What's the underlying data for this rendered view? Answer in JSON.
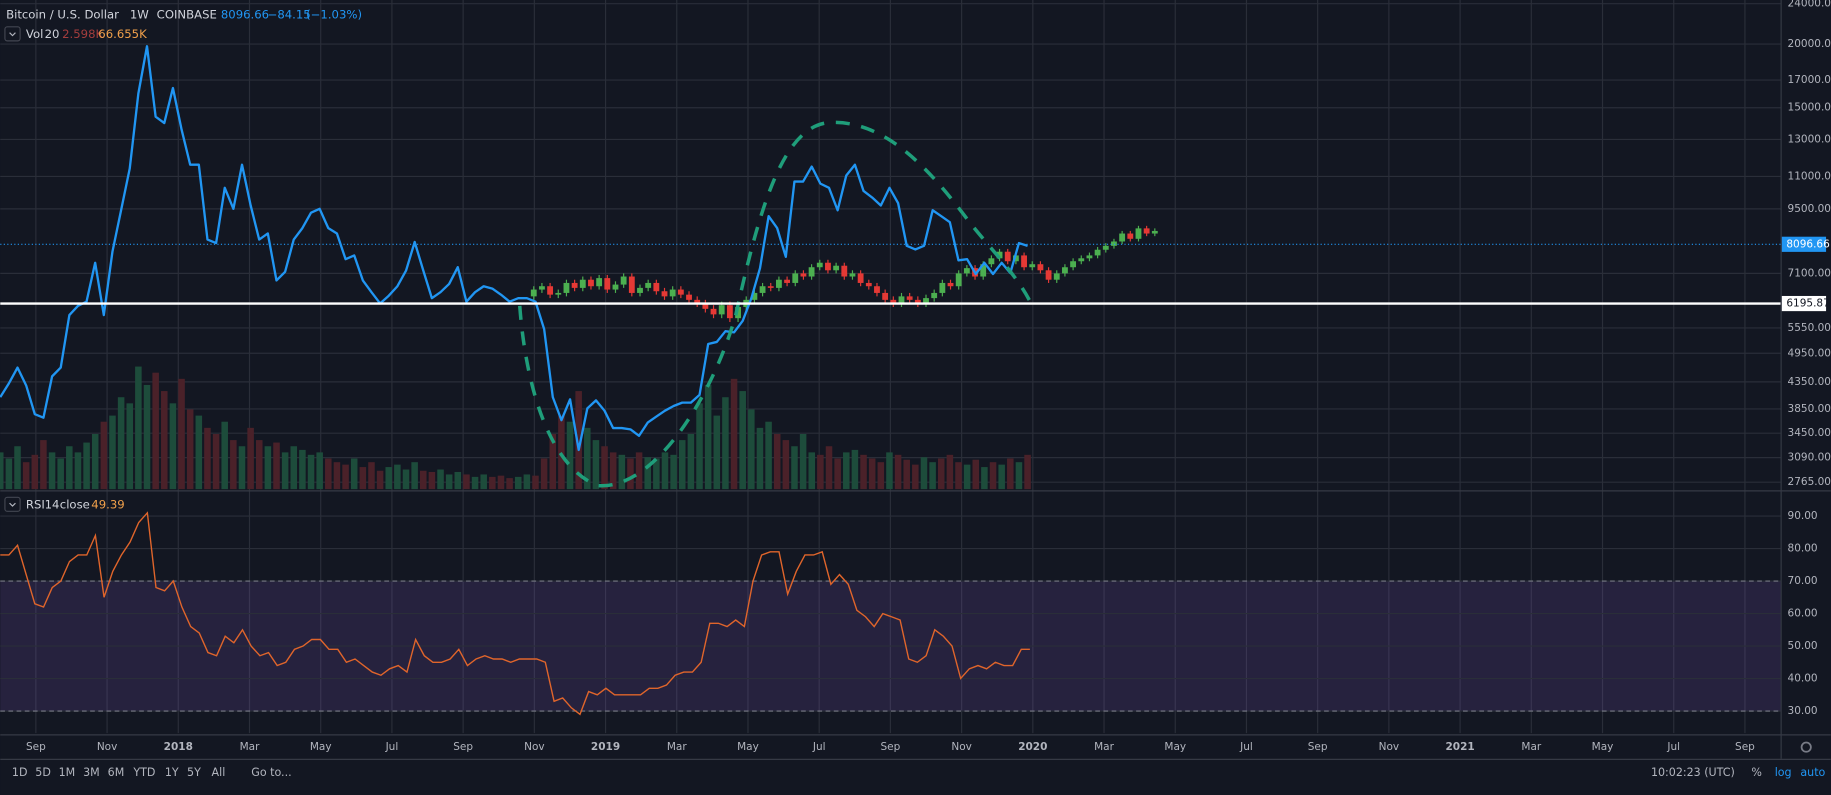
{
  "legend": {
    "symbol": "Bitcoin / U.S. Dollar",
    "interval": "1W",
    "exchange": "COINBASE",
    "last": "8096.66",
    "change": "−84.15",
    "change_pct": "(−1.03%)"
  },
  "chart_data": [
    {
      "type": "candlestick",
      "log": true,
      "grid": true,
      "ylim": [
        2680,
        24400
      ],
      "yticks": [
        {
          "value": 24000,
          "label": "24000.00"
        },
        {
          "value": 20000,
          "label": "20000.00"
        },
        {
          "value": 17000,
          "label": "17000.00"
        },
        {
          "value": 15000,
          "label": "15000.00"
        },
        {
          "value": 13000,
          "label": "13000.00"
        },
        {
          "value": 11000,
          "label": "11000.00"
        },
        {
          "value": 9500,
          "label": "9500.00"
        },
        {
          "value": 7100,
          "label": "7100.00"
        },
        {
          "value": 5550,
          "label": "5550.00"
        },
        {
          "value": 4950,
          "label": "4950.00"
        },
        {
          "value": 4350,
          "label": "4350.00"
        },
        {
          "value": 3850,
          "label": "3850.00"
        },
        {
          "value": 3450,
          "label": "3450.00"
        },
        {
          "value": 3090,
          "label": "3090.00"
        },
        {
          "value": 2765,
          "label": "2765.00"
        }
      ],
      "xlim": [
        "2017-08",
        "2021-10"
      ],
      "xticks": [
        {
          "value": "2017-09",
          "label": "Sep"
        },
        {
          "value": "2017-11",
          "label": "Nov"
        },
        {
          "value": "2018-01",
          "label": "2018"
        },
        {
          "value": "2018-03",
          "label": "Mar"
        },
        {
          "value": "2018-05",
          "label": "May"
        },
        {
          "value": "2018-07",
          "label": "Jul"
        },
        {
          "value": "2018-09",
          "label": "Sep"
        },
        {
          "value": "2018-11",
          "label": "Nov"
        },
        {
          "value": "2019-01",
          "label": "2019"
        },
        {
          "value": "2019-03",
          "label": "Mar"
        },
        {
          "value": "2019-05",
          "label": "May"
        },
        {
          "value": "2019-07",
          "label": "Jul"
        },
        {
          "value": "2019-09",
          "label": "Sep"
        },
        {
          "value": "2019-11",
          "label": "Nov"
        },
        {
          "value": "2020-01",
          "label": "2020"
        },
        {
          "value": "2020-03",
          "label": "Mar"
        },
        {
          "value": "2020-05",
          "label": "May"
        },
        {
          "value": "2020-07",
          "label": "Jul"
        },
        {
          "value": "2020-09",
          "label": "Sep"
        },
        {
          "value": "2020-11",
          "label": "Nov"
        },
        {
          "value": "2021-01",
          "label": "2021"
        },
        {
          "value": "2021-03",
          "label": "Mar"
        },
        {
          "value": "2021-05",
          "label": "May"
        },
        {
          "value": "2021-07",
          "label": "Jul"
        },
        {
          "value": "2021-09",
          "label": "Sep"
        }
      ],
      "series": [
        {
          "color": "#2196f3",
          "values": [
            4060,
            4320,
            4640,
            4280,
            3760,
            3700,
            4460,
            4640,
            5880,
            6130,
            6250,
            7450,
            5880,
            7830,
            9440,
            11400,
            16000,
            19800,
            14400,
            14000,
            16400,
            13600,
            11600,
            11600,
            8270,
            8140,
            10450,
            9500,
            11600,
            9650,
            8270,
            8500,
            6880,
            7150,
            8270,
            8710,
            9340,
            9500,
            8710,
            8500,
            7570,
            7700,
            6880,
            6520,
            6200,
            6420,
            6700,
            7190,
            8180,
            7190,
            6350,
            6520,
            6770,
            7300,
            6250,
            6520,
            6700,
            6630,
            6450,
            6250,
            6350,
            6350,
            6250,
            5520,
            4060,
            3660,
            4020,
            3200,
            3860,
            4000,
            3820,
            3530,
            3530,
            3510,
            3410,
            3620,
            3720,
            3820,
            3900,
            3960,
            3960,
            4100,
            5160,
            5210,
            5470,
            5440,
            5730,
            6350,
            7270,
            9190,
            8710,
            7650,
            10750,
            10750,
            11500,
            10650,
            10450,
            9440,
            11050,
            11600,
            10300,
            10000,
            9650,
            10450,
            9750,
            8040,
            7910,
            8040,
            9440,
            9190,
            8950,
            7530,
            7570,
            7080,
            7450,
            7080,
            7450,
            7110,
            8140,
            8040
          ]
        }
      ],
      "candles": {
        "up_color": "#4caf50",
        "down_color": "#e53935",
        "open": [
          6400,
          6600,
          6700,
          6450,
          6500,
          6800,
          6650,
          6900,
          6700,
          6950,
          6600,
          6750,
          7000,
          6500,
          6650,
          6800,
          6550,
          6400,
          6600,
          6450,
          6300,
          6200,
          6050,
          5900,
          6150,
          5800,
          6100,
          6300,
          6500,
          6700,
          6650,
          6900,
          6800,
          7100,
          7000,
          7300,
          7450,
          7200,
          7350,
          7000,
          7100,
          6800,
          6700,
          6500,
          6300,
          6200,
          6400,
          6300,
          6200,
          6350,
          6500,
          6800,
          6700,
          7100,
          7270,
          7000,
          7400,
          7600,
          7830,
          7500,
          7700,
          7300,
          7400,
          7200,
          6900,
          7100,
          7300,
          7500,
          7600,
          7700,
          7900,
          8040,
          8200,
          8500,
          8300,
          8700,
          8500
        ],
        "high": [
          6700,
          6800,
          6800,
          6600,
          6900,
          6900,
          7000,
          7000,
          7050,
          7050,
          6850,
          7100,
          7100,
          6750,
          6900,
          6900,
          6650,
          6700,
          6700,
          6550,
          6400,
          6300,
          6150,
          6250,
          6250,
          6200,
          6400,
          6600,
          6800,
          6800,
          7000,
          7000,
          7200,
          7200,
          7400,
          7550,
          7550,
          7450,
          7450,
          7200,
          7200,
          6900,
          6800,
          6600,
          6400,
          6500,
          6500,
          6400,
          6450,
          6600,
          6900,
          6900,
          7200,
          7370,
          7370,
          7500,
          7700,
          7930,
          7930,
          7800,
          7800,
          7500,
          7500,
          7300,
          7200,
          7400,
          7600,
          7700,
          7800,
          8000,
          8140,
          8300,
          8600,
          8600,
          8800,
          8800,
          8700
        ],
        "low": [
          6300,
          6500,
          6350,
          6350,
          6400,
          6550,
          6550,
          6600,
          6600,
          6500,
          6500,
          6650,
          6400,
          6400,
          6550,
          6450,
          6300,
          6300,
          6350,
          6200,
          6100,
          5950,
          5800,
          5800,
          5700,
          5700,
          6000,
          6200,
          6400,
          6550,
          6550,
          6700,
          6700,
          6900,
          6900,
          7200,
          7100,
          7100,
          6900,
          6900,
          6700,
          6600,
          6400,
          6200,
          6100,
          6100,
          6200,
          6100,
          6100,
          6250,
          6400,
          6600,
          6600,
          7000,
          6900,
          6900,
          7300,
          7500,
          7400,
          7400,
          7200,
          7200,
          7100,
          6800,
          6800,
          7000,
          7200,
          7400,
          7500,
          7600,
          7800,
          7940,
          8100,
          8200,
          8200,
          8400,
          8400
        ],
        "close": [
          6600,
          6700,
          6450,
          6500,
          6800,
          6650,
          6900,
          6700,
          6950,
          6600,
          6750,
          7000,
          6500,
          6650,
          6800,
          6550,
          6400,
          6600,
          6450,
          6300,
          6200,
          6050,
          5900,
          6150,
          5800,
          6100,
          6300,
          6500,
          6700,
          6650,
          6900,
          6800,
          7100,
          7000,
          7300,
          7450,
          7200,
          7350,
          7000,
          7100,
          6800,
          6700,
          6500,
          6300,
          6200,
          6400,
          6300,
          6200,
          6350,
          6500,
          6800,
          6700,
          7100,
          7270,
          7000,
          7400,
          7600,
          7830,
          7500,
          7700,
          7300,
          7400,
          7200,
          6900,
          7100,
          7300,
          7500,
          7600,
          7700,
          7900,
          8040,
          8200,
          8500,
          8300,
          8700,
          8500,
          8600
        ]
      },
      "price_lines": [
        {
          "value": 8096.66,
          "label": "8096.66",
          "color": "#2196f3",
          "style": "dotted"
        },
        {
          "value": 6195.87,
          "label": "6195.87",
          "color": "#ffffff",
          "style": "solid"
        }
      ]
    },
    {
      "type": "bar",
      "label": "Vol",
      "length": 20,
      "last_values": [
        "2.598K",
        "66.655K"
      ],
      "up_color": "#1d4c3b",
      "down_color": "#4a2129",
      "values": [
        30,
        25,
        35,
        22,
        28,
        40,
        30,
        25,
        35,
        30,
        38,
        45,
        55,
        60,
        75,
        70,
        100,
        85,
        95,
        80,
        70,
        90,
        65,
        60,
        50,
        45,
        55,
        40,
        35,
        50,
        40,
        35,
        38,
        30,
        35,
        32,
        28,
        30,
        25,
        22,
        20,
        25,
        18,
        22,
        15,
        18,
        20,
        16,
        22,
        15,
        14,
        16,
        12,
        14,
        12,
        10,
        12,
        10,
        11,
        9,
        10,
        12,
        11,
        25,
        45,
        60,
        55,
        80,
        50,
        40,
        35,
        30,
        28,
        25,
        30,
        26,
        25,
        30,
        28,
        40,
        45,
        70,
        85,
        60,
        75,
        90,
        80,
        65,
        50,
        55,
        45,
        40,
        35,
        45,
        30,
        28,
        35,
        25,
        30,
        32,
        28,
        25,
        22,
        30,
        28,
        24,
        20,
        26,
        22,
        25,
        28,
        22,
        20,
        24,
        18,
        22,
        20,
        25,
        22,
        28
      ]
    },
    {
      "type": "line",
      "label": "RSI",
      "length": 14,
      "source": "close",
      "last": 49.39,
      "color": "#e0652b",
      "band_color": "#7e57c2",
      "ylim": [
        23.2,
        97.2
      ],
      "bands": [
        70,
        30
      ],
      "yticks": [
        {
          "value": 90,
          "label": "90.00"
        },
        {
          "value": 80,
          "label": "80.00"
        },
        {
          "value": 70,
          "label": "70.00"
        },
        {
          "value": 60,
          "label": "60.00"
        },
        {
          "value": 50,
          "label": "50.00"
        },
        {
          "value": 40,
          "label": "40.00"
        },
        {
          "value": 30,
          "label": "30.00"
        }
      ],
      "values": [
        78,
        78,
        81,
        72,
        63,
        62,
        68,
        70,
        76,
        78,
        78,
        84,
        65,
        73,
        78,
        82,
        88,
        91,
        68,
        67,
        70,
        62,
        56,
        54,
        48,
        47,
        53,
        51,
        55,
        50,
        47,
        48,
        44,
        45,
        49,
        50,
        52,
        52,
        49,
        49,
        45,
        46,
        44,
        42,
        41,
        43,
        44,
        42,
        52,
        47,
        45,
        45,
        46,
        49,
        44,
        46,
        47,
        46,
        46,
        45,
        46,
        46,
        46,
        45,
        33,
        34,
        31,
        29,
        36,
        35,
        37,
        35,
        35,
        35,
        35,
        37,
        37,
        38,
        41,
        42,
        42,
        45,
        57,
        57,
        56,
        58,
        56,
        70,
        78,
        79,
        79,
        66,
        73,
        78,
        78,
        79,
        69,
        72,
        69,
        61,
        59,
        56,
        60,
        59,
        58,
        46,
        45,
        47,
        55,
        53,
        50,
        40,
        43,
        44,
        43,
        45,
        44,
        44,
        49,
        49
      ]
    }
  ],
  "toolbar": {
    "ranges": [
      "1D",
      "5D",
      "1M",
      "3M",
      "6M",
      "YTD",
      "1Y",
      "5Y",
      "All"
    ],
    "goto": "Go to...",
    "clock": "10:02:23 (UTC)",
    "percent": "%",
    "log": "log",
    "auto": "auto"
  }
}
